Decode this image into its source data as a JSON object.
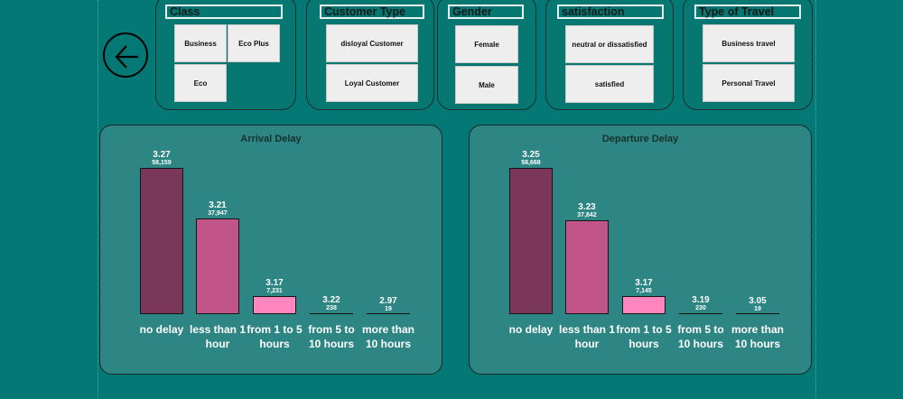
{
  "back_button": {
    "icon": "arrow-left-icon"
  },
  "filters": [
    {
      "title": "Class",
      "options": [
        "Business",
        "Eco Plus",
        "Eco"
      ]
    },
    {
      "title": "Customer Type",
      "options": [
        "disloyal Customer",
        "Loyal Customer"
      ]
    },
    {
      "title": "Gender",
      "options": [
        "Female",
        "Male"
      ]
    },
    {
      "title": "satisfaction",
      "options": [
        "neutral or dissatisfied",
        "satisfied"
      ]
    },
    {
      "title": "Type of Travel",
      "options": [
        "Business travel",
        "Personal Travel"
      ]
    }
  ],
  "colors": {
    "bar": [
      "#7b3759",
      "#c15589",
      "#ff86bf",
      "#2d8684",
      "#2d8684"
    ]
  },
  "chart_data": [
    {
      "type": "bar",
      "title": "Arrival Delay",
      "categories": [
        "no delay",
        "less than 1 hour",
        "from 1 to 5 hours",
        "from 5 to 10 hours",
        "more than 10 hours"
      ],
      "series": [
        {
          "values": [
            58159,
            37947,
            7231,
            238,
            19
          ]
        },
        {
          "values": [
            3.27,
            3.21,
            3.17,
            3.22,
            2.97
          ]
        }
      ],
      "labels": {
        "avg": [
          "3.27",
          "3.21",
          "3.17",
          "3.22",
          "2.97"
        ],
        "count": [
          "58,159",
          "37,947",
          "7,231",
          "238",
          "19"
        ]
      }
    },
    {
      "type": "bar",
      "title": "Departure Delay",
      "categories": [
        "no delay",
        "less than 1 hour",
        "from 1 to 5 hours",
        "from 5 to 10 hours",
        "more than 10 hours"
      ],
      "series": [
        {
          "values": [
            58668,
            37842,
            7145,
            230,
            19
          ]
        },
        {
          "values": [
            3.25,
            3.23,
            3.17,
            3.19,
            3.05
          ]
        }
      ],
      "labels": {
        "avg": [
          "3.25",
          "3.23",
          "3.17",
          "3.19",
          "3.05"
        ],
        "count": [
          "58,668",
          "37,842",
          "7,145",
          "230",
          "19"
        ]
      }
    }
  ]
}
